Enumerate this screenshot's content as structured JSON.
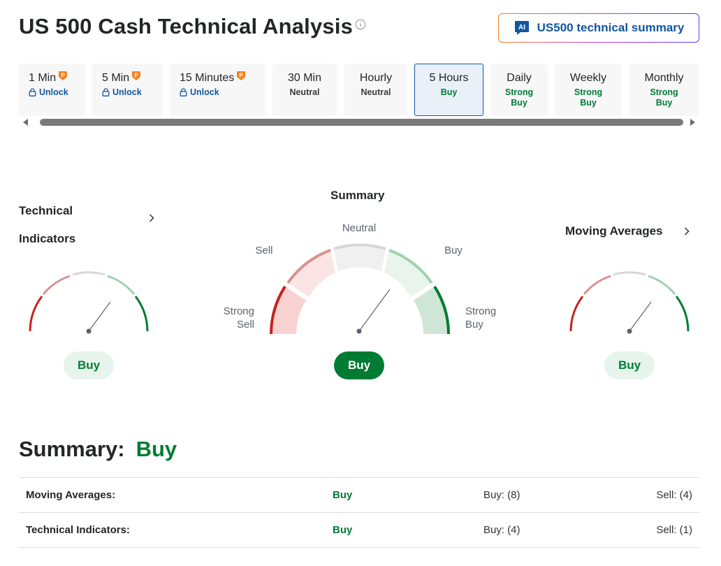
{
  "title": "US 500 Cash Technical Analysis",
  "ai_button": {
    "label": "US500 technical summary",
    "icon": "ai-chat-icon"
  },
  "timeframes": [
    {
      "label": "1 Min",
      "sub": "Unlock",
      "pro": true
    },
    {
      "label": "5 Min",
      "sub": "Unlock",
      "pro": true
    },
    {
      "label": "15 Minutes",
      "sub": "Unlock",
      "pro": true
    },
    {
      "label": "30 Min",
      "sub": "Neutral"
    },
    {
      "label": "Hourly",
      "sub": "Neutral"
    },
    {
      "label": "5 Hours",
      "sub": "Buy",
      "active": true
    },
    {
      "label": "Daily",
      "sub1": "Strong",
      "sub2": "Buy"
    },
    {
      "label": "Weekly",
      "sub1": "Strong",
      "sub2": "Buy"
    },
    {
      "label": "Monthly",
      "sub1": "Strong",
      "sub2": "Buy"
    }
  ],
  "technical_indicators": {
    "title_line1": "Technical",
    "title_line2": "Indicators",
    "signal": "Buy"
  },
  "summary_gauge": {
    "title": "Summary",
    "labels": {
      "neutral": "Neutral",
      "sell": "Sell",
      "buy": "Buy",
      "strong_sell_1": "Strong",
      "strong_sell_2": "Sell",
      "strong_buy_1": "Strong",
      "strong_buy_2": "Buy"
    },
    "signal": "Buy"
  },
  "moving_averages": {
    "title": "Moving Averages",
    "signal": "Buy"
  },
  "summary": {
    "label": "Summary:",
    "value": "Buy",
    "rows": [
      {
        "name": "Moving Averages:",
        "signal": "Buy",
        "buy": "Buy: (8)",
        "sell": "Sell: (4)"
      },
      {
        "name": "Technical Indicators:",
        "signal": "Buy",
        "buy": "Buy: (4)",
        "sell": "Sell: (1)"
      }
    ]
  },
  "colors": {
    "buy_green": "#007c32",
    "link_blue": "#1256a0",
    "strong_sell_red": "#c5221f",
    "pro_orange": "#f6801f"
  }
}
